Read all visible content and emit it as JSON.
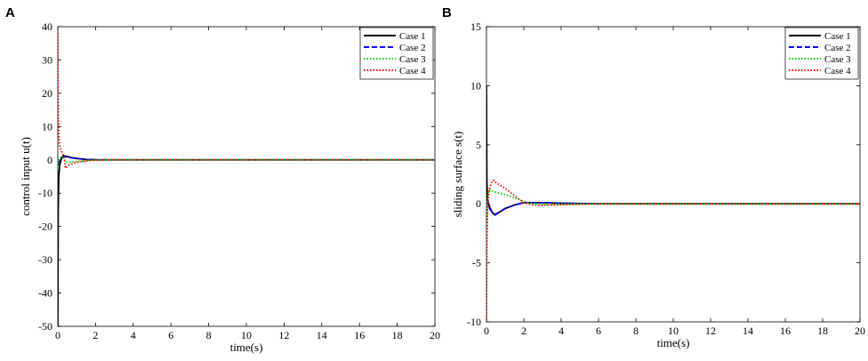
{
  "chart_data": [
    {
      "panel": "A",
      "type": "line",
      "title": "",
      "xlabel": "time(s)",
      "ylabel": "control input u(t)",
      "xlim": [
        0,
        20
      ],
      "ylim": [
        -50,
        40
      ],
      "xticks": [
        0,
        2,
        4,
        6,
        8,
        10,
        12,
        14,
        16,
        18,
        20
      ],
      "yticks": [
        -50,
        -40,
        -30,
        -20,
        -10,
        0,
        10,
        20,
        30,
        40
      ],
      "grid": false,
      "legend": "top-right",
      "series": [
        {
          "name": "Case 1",
          "color": "#000000",
          "dash": "solid",
          "x": [
            0,
            0.02,
            0.05,
            0.1,
            0.15,
            0.2,
            0.3,
            0.4,
            0.5,
            0.7,
            1.0,
            1.5,
            2.0,
            3.0,
            20
          ],
          "y": [
            -50,
            -15,
            -5,
            -1.5,
            -0.5,
            0.5,
            1.2,
            1.1,
            1.0,
            0.7,
            0.4,
            0.15,
            0.05,
            0,
            0
          ]
        },
        {
          "name": "Case 2",
          "color": "#0000ff",
          "dash": "dashed",
          "x": [
            0,
            0.05,
            0.1,
            0.2,
            0.3,
            0.4,
            0.6,
            1.0,
            1.5,
            2.0,
            3.0,
            20
          ],
          "y": [
            -1.5,
            -0.8,
            -0.3,
            0.4,
            0.8,
            0.9,
            0.7,
            0.4,
            0.15,
            0.05,
            0,
            0
          ]
        },
        {
          "name": "Case 3",
          "color": "#00cc00",
          "dash": "dotted",
          "x": [
            0,
            0.05,
            0.1,
            0.2,
            0.3,
            0.4,
            0.6,
            1.0,
            1.5,
            2.0,
            3.0,
            20
          ],
          "y": [
            -3,
            -1,
            0.5,
            1.0,
            0.6,
            -0.5,
            -0.8,
            -0.5,
            -0.2,
            -0.05,
            0,
            0
          ]
        },
        {
          "name": "Case 4",
          "color": "#ff0000",
          "dash": "dotted",
          "x": [
            0,
            0.03,
            0.08,
            0.15,
            0.25,
            0.35,
            0.4,
            0.45,
            0.6,
            1.0,
            1.5,
            2.0,
            3.0,
            20
          ],
          "y": [
            38,
            12,
            5,
            3,
            2,
            0.5,
            -2.5,
            -2.2,
            -1.5,
            -0.8,
            -0.3,
            -0.1,
            0,
            0
          ]
        }
      ]
    },
    {
      "panel": "B",
      "type": "line",
      "title": "",
      "xlabel": "time(s)",
      "ylabel": "sliding surface s(t)",
      "xlim": [
        0,
        20
      ],
      "ylim": [
        -10,
        15
      ],
      "xticks": [
        0,
        2,
        4,
        6,
        8,
        10,
        12,
        14,
        16,
        18,
        20
      ],
      "yticks": [
        -10,
        -5,
        0,
        5,
        10,
        15
      ],
      "grid": false,
      "legend": "top-right",
      "series": [
        {
          "name": "Case 1",
          "color": "#000000",
          "dash": "solid",
          "x": [
            0,
            0.02,
            0.05,
            0.1,
            0.2,
            0.3,
            0.45,
            0.7,
            1.0,
            1.5,
            2.0,
            3.0,
            4.0,
            6.0,
            20
          ],
          "y": [
            10,
            2,
            0.5,
            0,
            -0.4,
            -0.7,
            -0.95,
            -0.7,
            -0.4,
            -0.1,
            0.1,
            0.1,
            0.05,
            0,
            0
          ]
        },
        {
          "name": "Case 2",
          "color": "#0000ff",
          "dash": "dashed",
          "x": [
            0,
            0.1,
            0.2,
            0.3,
            0.45,
            0.7,
            1.0,
            1.5,
            2.0,
            3.0,
            4.0,
            6.0,
            20
          ],
          "y": [
            0.3,
            -0.2,
            -0.5,
            -0.7,
            -0.9,
            -0.7,
            -0.4,
            -0.1,
            0.1,
            0.1,
            0.05,
            0,
            0
          ]
        },
        {
          "name": "Case 3",
          "color": "#00cc00",
          "dash": "dotted",
          "x": [
            0,
            0.05,
            0.1,
            0.2,
            0.3,
            0.45,
            0.7,
            1.0,
            1.5,
            2.0,
            2.5,
            3.0,
            4.0,
            6.0,
            20
          ],
          "y": [
            -2,
            0.5,
            1.0,
            1.2,
            1.1,
            1.0,
            0.9,
            0.8,
            0.5,
            0.2,
            0,
            -0.05,
            -0.03,
            0,
            0
          ]
        },
        {
          "name": "Case 4",
          "color": "#ff0000",
          "dash": "dotted",
          "x": [
            0,
            0.03,
            0.06,
            0.1,
            0.15,
            0.2,
            0.3,
            0.4,
            0.5,
            0.7,
            1.0,
            1.5,
            2.0,
            2.5,
            3.0,
            4.0,
            6.0,
            20
          ],
          "y": [
            -9.8,
            -3,
            -0.5,
            0.5,
            1.2,
            1.5,
            1.9,
            2.0,
            1.8,
            1.6,
            1.3,
            0.7,
            0.1,
            -0.1,
            -0.12,
            -0.08,
            0,
            0
          ]
        }
      ]
    }
  ]
}
